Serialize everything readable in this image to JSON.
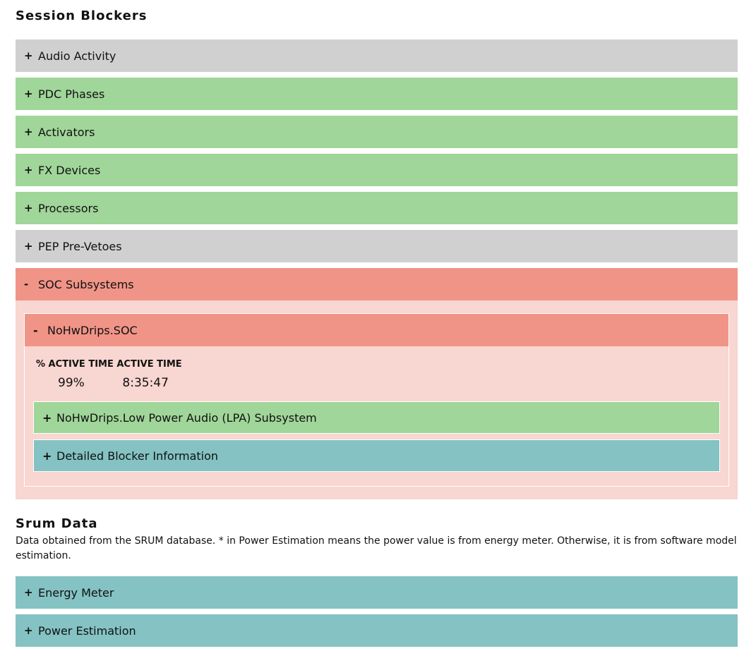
{
  "session_blockers": {
    "title": "Session Blockers",
    "items": [
      {
        "toggle": "+",
        "label": "Audio Activity",
        "color": "#d0d0d0"
      },
      {
        "toggle": "+",
        "label": "PDC Phases",
        "color": "#a0d699"
      },
      {
        "toggle": "+",
        "label": "Activators",
        "color": "#a0d699"
      },
      {
        "toggle": "+",
        "label": "FX Devices",
        "color": "#a0d699"
      },
      {
        "toggle": "+",
        "label": "Processors",
        "color": "#a0d699"
      },
      {
        "toggle": "+",
        "label": "PEP Pre-Vetoes",
        "color": "#d0d0d0"
      },
      {
        "toggle": "-",
        "label": "SOC Subsystems",
        "color": "#f09487"
      }
    ],
    "soc": {
      "toggle": "-",
      "label": "NoHwDrips.SOC",
      "stats_header": "% ACTIVE TIME ACTIVE TIME",
      "percent_active": "99%",
      "active_time": "8:35:47",
      "children": [
        {
          "toggle": "+",
          "label": "NoHwDrips.Low Power Audio (LPA) Subsystem",
          "color": "#a0d699"
        },
        {
          "toggle": "+",
          "label": "Detailed Blocker Information",
          "color": "#84c2c3"
        }
      ]
    }
  },
  "srum": {
    "title": "Srum Data",
    "description": "Data obtained from the SRUM database. * in Power Estimation means the power value is from energy meter. Otherwise, it is from software model estimation.",
    "items": [
      {
        "toggle": "+",
        "label": "Energy Meter",
        "color": "#84c2c3"
      },
      {
        "toggle": "+",
        "label": "Power Estimation",
        "color": "#84c2c3"
      }
    ]
  }
}
